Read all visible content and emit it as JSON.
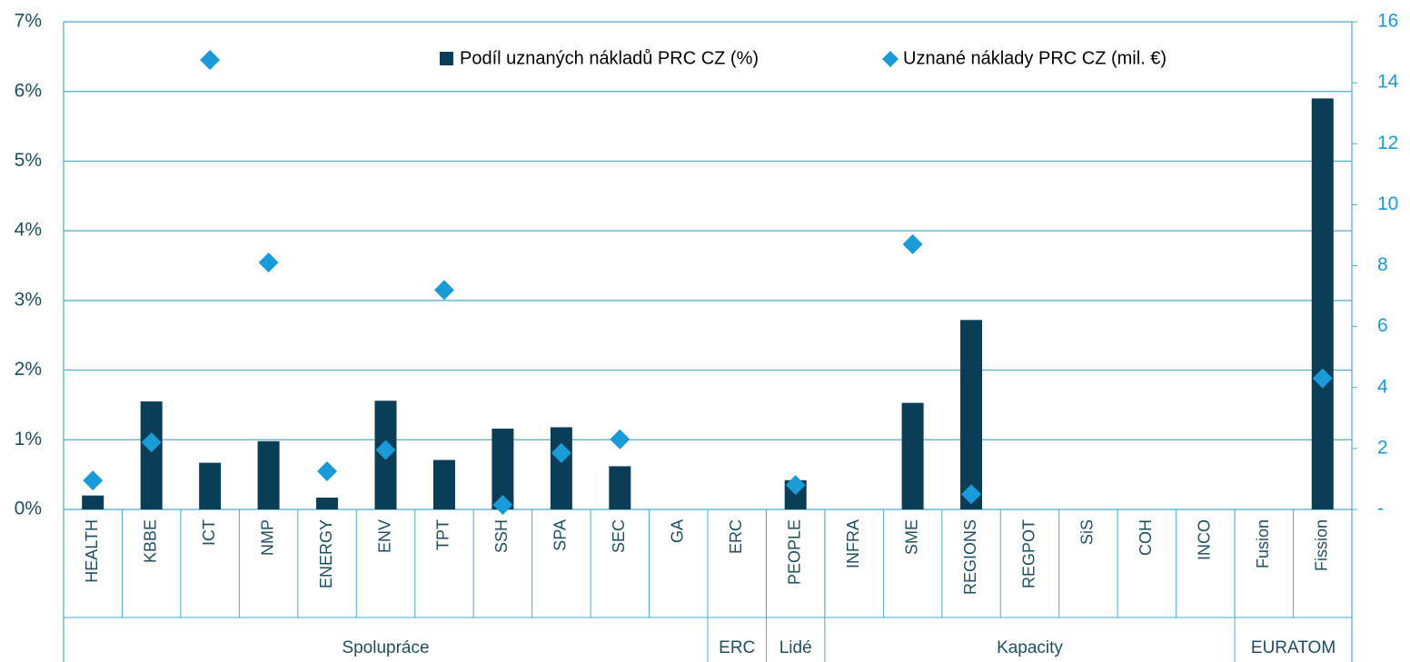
{
  "chart_data": {
    "type": "bar",
    "categories": [
      "HEALTH",
      "KBBE",
      "ICT",
      "NMP",
      "ENERGY",
      "ENV",
      "TPT",
      "SSH",
      "SPA",
      "SEC",
      "GA",
      "ERC",
      "PEOPLE",
      "INFRA",
      "SME",
      "REGIONS",
      "REGPOT",
      "SiS",
      "COH",
      "INCO",
      "Fusion",
      "Fission"
    ],
    "groups": [
      {
        "label": "Spolupráce",
        "count": 11
      },
      {
        "label": "ERC",
        "count": 1
      },
      {
        "label": "Lidé",
        "count": 1
      },
      {
        "label": "Kapacity",
        "count": 7
      },
      {
        "label": "EURATOM",
        "count": 2
      }
    ],
    "series": [
      {
        "name": "Podíl uznaných nákladů PRC CZ (%)",
        "color": "#0b3d57",
        "type": "bar",
        "values": [
          0.2,
          1.55,
          0.67,
          0.98,
          0.17,
          1.56,
          0.71,
          1.16,
          1.18,
          0.62,
          null,
          null,
          0.42,
          null,
          1.53,
          2.72,
          null,
          null,
          null,
          null,
          null,
          5.9
        ]
      },
      {
        "name": "Uznané náklady PRC CZ (mil. €)",
        "color": "#1a9ad6",
        "type": "scatter",
        "axis": "y2",
        "values": [
          0.95,
          2.2,
          14.75,
          8.1,
          1.25,
          1.95,
          7.2,
          0.15,
          1.85,
          2.3,
          null,
          null,
          0.8,
          null,
          8.7,
          0.5,
          null,
          null,
          null,
          null,
          null,
          4.3
        ]
      }
    ],
    "ylim": [
      0,
      7
    ],
    "yticks": [
      {
        "value": 0,
        "label": "0%"
      },
      {
        "value": 1,
        "label": "1%"
      },
      {
        "value": 2,
        "label": "2%"
      },
      {
        "value": 3,
        "label": "3%"
      },
      {
        "value": 4,
        "label": "4%"
      },
      {
        "value": 5,
        "label": "5%"
      },
      {
        "value": 6,
        "label": "6%"
      },
      {
        "value": 7,
        "label": "7%"
      }
    ],
    "y2lim": [
      0,
      16
    ],
    "y2ticks": [
      {
        "value": 0,
        "label": "-"
      },
      2,
      4,
      6,
      8,
      10,
      12,
      14,
      16
    ],
    "grid": true
  }
}
